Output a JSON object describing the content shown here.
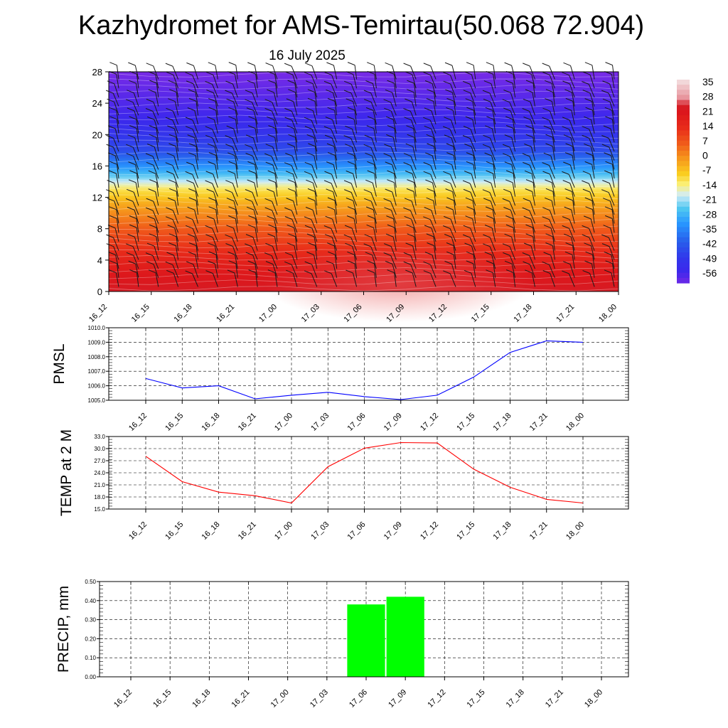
{
  "title": "Kazhydromet for AMS-Temirtau(50.068 72.904)",
  "subtitle": "16 July 2025",
  "time_labels": [
    "16_12",
    "16_15",
    "16_18",
    "16_21",
    "17_00",
    "17_03",
    "17_06",
    "17_09",
    "17_12",
    "17_15",
    "17_18",
    "17_21",
    "18_00"
  ],
  "colorbar": {
    "labels": [
      "35",
      "28",
      "21",
      "14",
      "7",
      "0",
      "-7",
      "-14",
      "-21",
      "-28",
      "-35",
      "-42",
      "-49",
      "-56"
    ],
    "colors": [
      "#f2d7d9",
      "#e8a0a6",
      "#d81e2a",
      "#e8321e",
      "#f05a1e",
      "#f5941e",
      "#f8c81e",
      "#fbf075",
      "#d7ecf6",
      "#50c8f0",
      "#2a8cff",
      "#2a5ae6",
      "#3a28ec",
      "#7a2ae6"
    ]
  },
  "chart_data": [
    {
      "type": "heatmap",
      "name": "vertical-section",
      "x": [
        "16_12",
        "16_15",
        "16_18",
        "16_21",
        "17_00",
        "17_03",
        "17_06",
        "17_09",
        "17_12",
        "17_15",
        "17_18",
        "17_21",
        "18_00"
      ],
      "yticks": [
        "0",
        "4",
        "8",
        "12",
        "16",
        "20",
        "24",
        "28"
      ],
      "ylim": [
        0,
        28
      ],
      "value_range": [
        -56,
        35
      ],
      "note_levels": [
        {
          "height": 0,
          "value": 24
        },
        {
          "height": 4,
          "value": 17
        },
        {
          "height": 8,
          "value": 7
        },
        {
          "height": 11,
          "value": -2
        },
        {
          "height": 13,
          "value": -10
        },
        {
          "height": 15,
          "value": -25
        },
        {
          "height": 18,
          "value": -42
        },
        {
          "height": 22,
          "value": -52
        },
        {
          "height": 28,
          "value": -58
        }
      ]
    },
    {
      "type": "line",
      "ylabel": "PMSL",
      "x": [
        "16_12",
        "16_15",
        "16_18",
        "16_21",
        "17_00",
        "17_03",
        "17_06",
        "17_09",
        "17_12",
        "17_15",
        "17_18",
        "17_21",
        "18_00"
      ],
      "values": [
        1006.5,
        1005.85,
        1006.0,
        1005.1,
        1005.35,
        1005.55,
        1005.25,
        1005.05,
        1005.35,
        1006.6,
        1008.3,
        1009.1,
        1009.0
      ],
      "ylim": [
        1005.0,
        1010.0
      ],
      "yticks": [
        "1010.0",
        "1009.0",
        "1008.0",
        "1007.0",
        "1006.0",
        "1005.0"
      ],
      "color": "#0000ff"
    },
    {
      "type": "line",
      "ylabel": "TEMP at 2 M",
      "x": [
        "16_12",
        "16_15",
        "16_18",
        "16_21",
        "17_00",
        "17_03",
        "17_06",
        "17_09",
        "17_12",
        "17_15",
        "17_18",
        "17_21",
        "18_00"
      ],
      "values": [
        28.1,
        21.8,
        19.2,
        18.3,
        16.5,
        25.5,
        30.1,
        31.5,
        31.4,
        24.9,
        20.4,
        17.4,
        16.5
      ],
      "ylim": [
        15.0,
        33.0
      ],
      "yticks": [
        "33.0",
        "30.0",
        "27.0",
        "24.0",
        "21.0",
        "18.0",
        "15.0"
      ],
      "color": "#ff0000"
    },
    {
      "type": "bar",
      "ylabel": "PRECIP, mm",
      "categories": [
        "16_12",
        "16_15",
        "16_18",
        "16_21",
        "17_00",
        "17_03",
        "17_06",
        "17_09",
        "17_12",
        "17_15",
        "17_18",
        "17_21",
        "18_00"
      ],
      "values": [
        0,
        0,
        0,
        0,
        0,
        0,
        0.38,
        0.42,
        0,
        0,
        0,
        0,
        0
      ],
      "ylim": [
        0,
        0.5
      ],
      "yticks": [
        "0.50",
        "0.40",
        "0.30",
        "0.20",
        "0.10",
        "0.00"
      ],
      "color": "#00ff00"
    }
  ]
}
